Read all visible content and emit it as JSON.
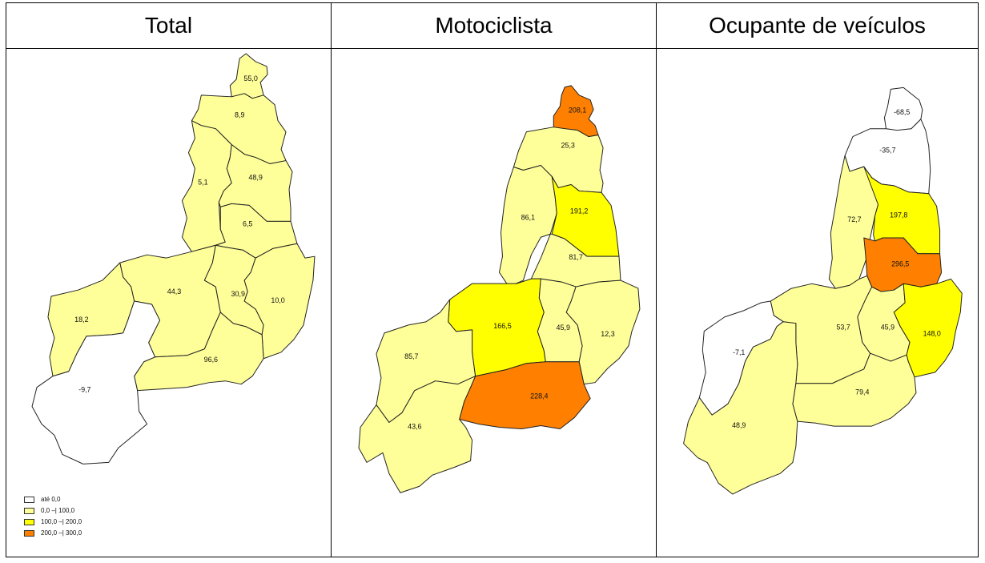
{
  "colors": {
    "c0": "#ffffff",
    "c1": "#ffff99",
    "c2": "#ffff00",
    "c3": "#ff8000"
  },
  "panels": [
    {
      "title": "Total",
      "regions": {
        "r1": {
          "value": "55,0",
          "class": "c1"
        },
        "r2": {
          "value": "8,9",
          "class": "c1"
        },
        "r3": {
          "value": "5,1",
          "class": "c1"
        },
        "r4": {
          "value": "48,9",
          "class": "c1"
        },
        "r5": {
          "value": "6,5",
          "class": "c1"
        },
        "r6": {
          "value": "44,3",
          "class": "c1"
        },
        "r7": {
          "value": "30,9",
          "class": "c1"
        },
        "r8": {
          "value": "10,0",
          "class": "c1"
        },
        "r9": {
          "value": "18,2",
          "class": "c1"
        },
        "r10": {
          "value": "96,6",
          "class": "c1"
        },
        "r11": {
          "value": "-9,7",
          "class": "c0"
        }
      }
    },
    {
      "title": "Motociclista",
      "regions": {
        "r1": {
          "value": "208,1",
          "class": "c3"
        },
        "r2": {
          "value": "25,3",
          "class": "c1"
        },
        "r3": {
          "value": "86,1",
          "class": "c1"
        },
        "r4": {
          "value": "191,2",
          "class": "c2"
        },
        "r5": {
          "value": "81,7",
          "class": "c1"
        },
        "r6": {
          "value": "166,5",
          "class": "c2"
        },
        "r7": {
          "value": "45,9",
          "class": "c1"
        },
        "r8": {
          "value": "12,3",
          "class": "c1"
        },
        "r9": {
          "value": "85,7",
          "class": "c1"
        },
        "r10": {
          "value": "228,4",
          "class": "c3"
        },
        "r11": {
          "value": "43,6",
          "class": "c1"
        }
      }
    },
    {
      "title": "Ocupante de veículos",
      "regions": {
        "r1": {
          "value": "-68,5",
          "class": "c0"
        },
        "r2": {
          "value": "-35,7",
          "class": "c0"
        },
        "r3": {
          "value": "72,7",
          "class": "c1"
        },
        "r4": {
          "value": "197,8",
          "class": "c2"
        },
        "r5": {
          "value": "296,5",
          "class": "c3"
        },
        "r6": {
          "value": "53,7",
          "class": "c1"
        },
        "r7": {
          "value": "45,9",
          "class": "c1"
        },
        "r8": {
          "value": "148,0",
          "class": "c2"
        },
        "r9": {
          "value": "-7,1",
          "class": "c0"
        },
        "r10": {
          "value": "79,4",
          "class": "c1"
        },
        "r11": {
          "value": "48,9",
          "class": "c1"
        }
      }
    }
  ],
  "legend": [
    {
      "label": "até 0,0",
      "class": "c0"
    },
    {
      "label": "0,0 –| 100,0",
      "class": "c1"
    },
    {
      "label": "100,0 –| 200,0",
      "class": "c2"
    },
    {
      "label": "200,0 –| 300,0",
      "class": "c3"
    }
  ]
}
